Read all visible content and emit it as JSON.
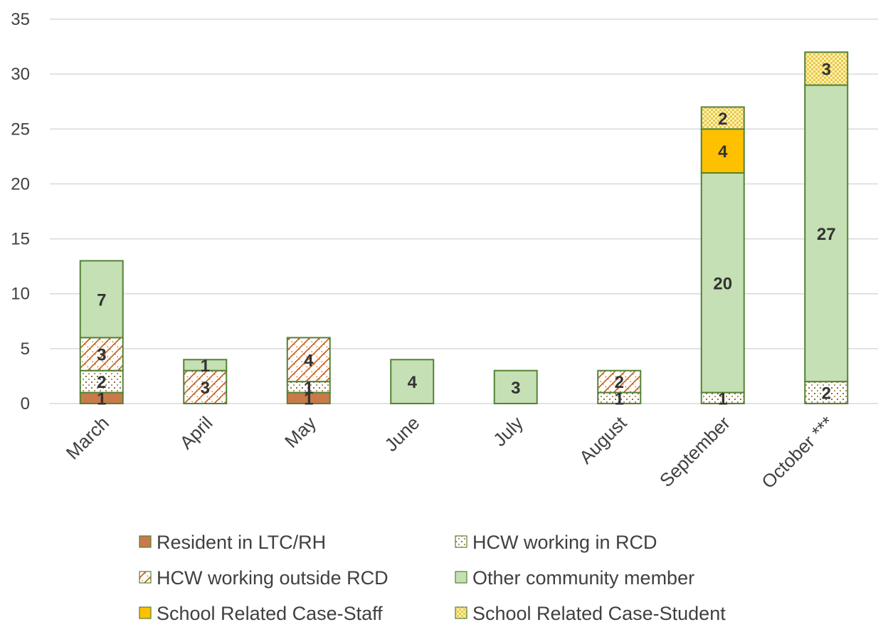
{
  "chart_data": {
    "type": "bar",
    "stacked": true,
    "categories": [
      "March",
      "April",
      "May",
      "June",
      "July",
      "August",
      "September",
      "October ***"
    ],
    "ylim": [
      0,
      35
    ],
    "yticks": [
      0,
      5,
      10,
      15,
      20,
      25,
      30,
      35
    ],
    "grid": "horizontal",
    "legend_position": "bottom",
    "series": [
      {
        "name": "Resident in LTC/RH",
        "values": [
          1,
          0,
          1,
          0,
          0,
          0,
          0,
          0
        ],
        "color": "#c97a4a",
        "pattern": "solid"
      },
      {
        "name": "HCW working in RCD",
        "values": [
          2,
          0,
          1,
          0,
          0,
          1,
          1,
          2
        ],
        "color": "#e2efd9",
        "pattern": "dotted-grid"
      },
      {
        "name": "HCW working outside RCD",
        "values": [
          3,
          3,
          4,
          0,
          0,
          2,
          0,
          0
        ],
        "color": "#c55a11",
        "pattern": "diagonal-cross"
      },
      {
        "name": "Other community member",
        "values": [
          7,
          1,
          0,
          4,
          3,
          0,
          20,
          27
        ],
        "color": "#c5e0b4",
        "pattern": "solid"
      },
      {
        "name": "School Related Case-Staff",
        "values": [
          0,
          0,
          0,
          0,
          0,
          0,
          4,
          0
        ],
        "color": "#ffc000",
        "pattern": "solid"
      },
      {
        "name": "School Related Case-Student",
        "values": [
          0,
          0,
          0,
          0,
          0,
          0,
          2,
          3
        ],
        "color": "#f2e07a",
        "pattern": "checker"
      }
    ],
    "outline_color": "#548235"
  }
}
